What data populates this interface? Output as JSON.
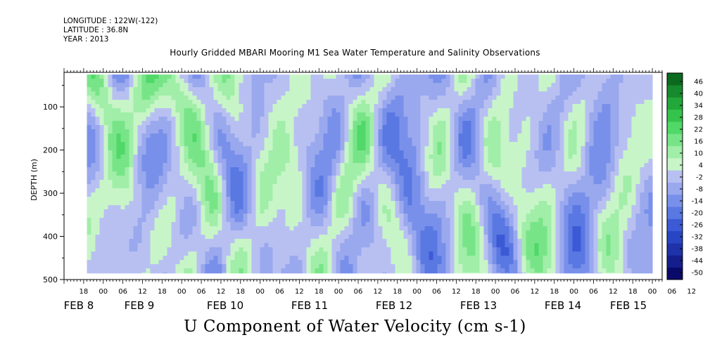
{
  "header": {
    "longitude": "LONGITUDE : 122W(-122)",
    "latitude": "LATITUDE : 36.8N",
    "year": "YEAR : 2013"
  },
  "chart_data": {
    "type": "heatmap",
    "title": "Hourly Gridded MBARI Mooring M1 Sea Water Temperature and Salinity Observations",
    "xlabel": "U Component of Water Velocity (cm s-1)",
    "ylabel": "DEPTH (m)",
    "ylim": [
      500,
      20
    ],
    "y_ticks": [
      100,
      200,
      300,
      400,
      500
    ],
    "y_tick_labels": [
      "100",
      "200",
      "300",
      "400",
      "500"
    ],
    "xlim": [
      "2013-02-07T12:00",
      "2013-02-15T03:00"
    ],
    "data_x_range": [
      "2013-02-07T19:00",
      "2013-02-15T00:00"
    ],
    "data_depth_range": [
      25,
      485
    ],
    "hour_tick_labels": [
      "18",
      "00",
      "06",
      "12",
      "18",
      "00",
      "06",
      "12",
      "18",
      "00",
      "06",
      "12",
      "18",
      "00",
      "06",
      "12",
      "18",
      "00",
      "06",
      "12",
      "18",
      "00",
      "06",
      "12",
      "18",
      "00",
      "06",
      "12",
      "18",
      "00",
      "06",
      "12"
    ],
    "date_labels": [
      "FEB 8",
      "FEB 9",
      "FEB 10",
      "FEB 11",
      "FEB 12",
      "FEB 13",
      "FEB 14",
      "FEB 15"
    ],
    "colorbar": {
      "levels": [
        -50,
        -44,
        -38,
        -32,
        -26,
        -20,
        -14,
        -8,
        -2,
        4,
        10,
        16,
        22,
        28,
        34,
        40,
        46
      ],
      "labels": [
        "46",
        "40",
        "34",
        "28",
        "22",
        "16",
        "10",
        "4",
        "-2",
        "-8",
        "-14",
        "-20",
        "-26",
        "-32",
        "-38",
        "-44",
        "-50"
      ],
      "colors": [
        "#0a0a6a",
        "#141e8c",
        "#1e32aa",
        "#2846c4",
        "#3c5ad6",
        "#5a78e2",
        "#7890ea",
        "#9aa8ee",
        "#b8c0f2",
        "#c8f5c8",
        "#a0eea8",
        "#78e488",
        "#50d868",
        "#34c44c",
        "#22a83a",
        "#168a2c",
        "#0c6a1e"
      ]
    }
  }
}
